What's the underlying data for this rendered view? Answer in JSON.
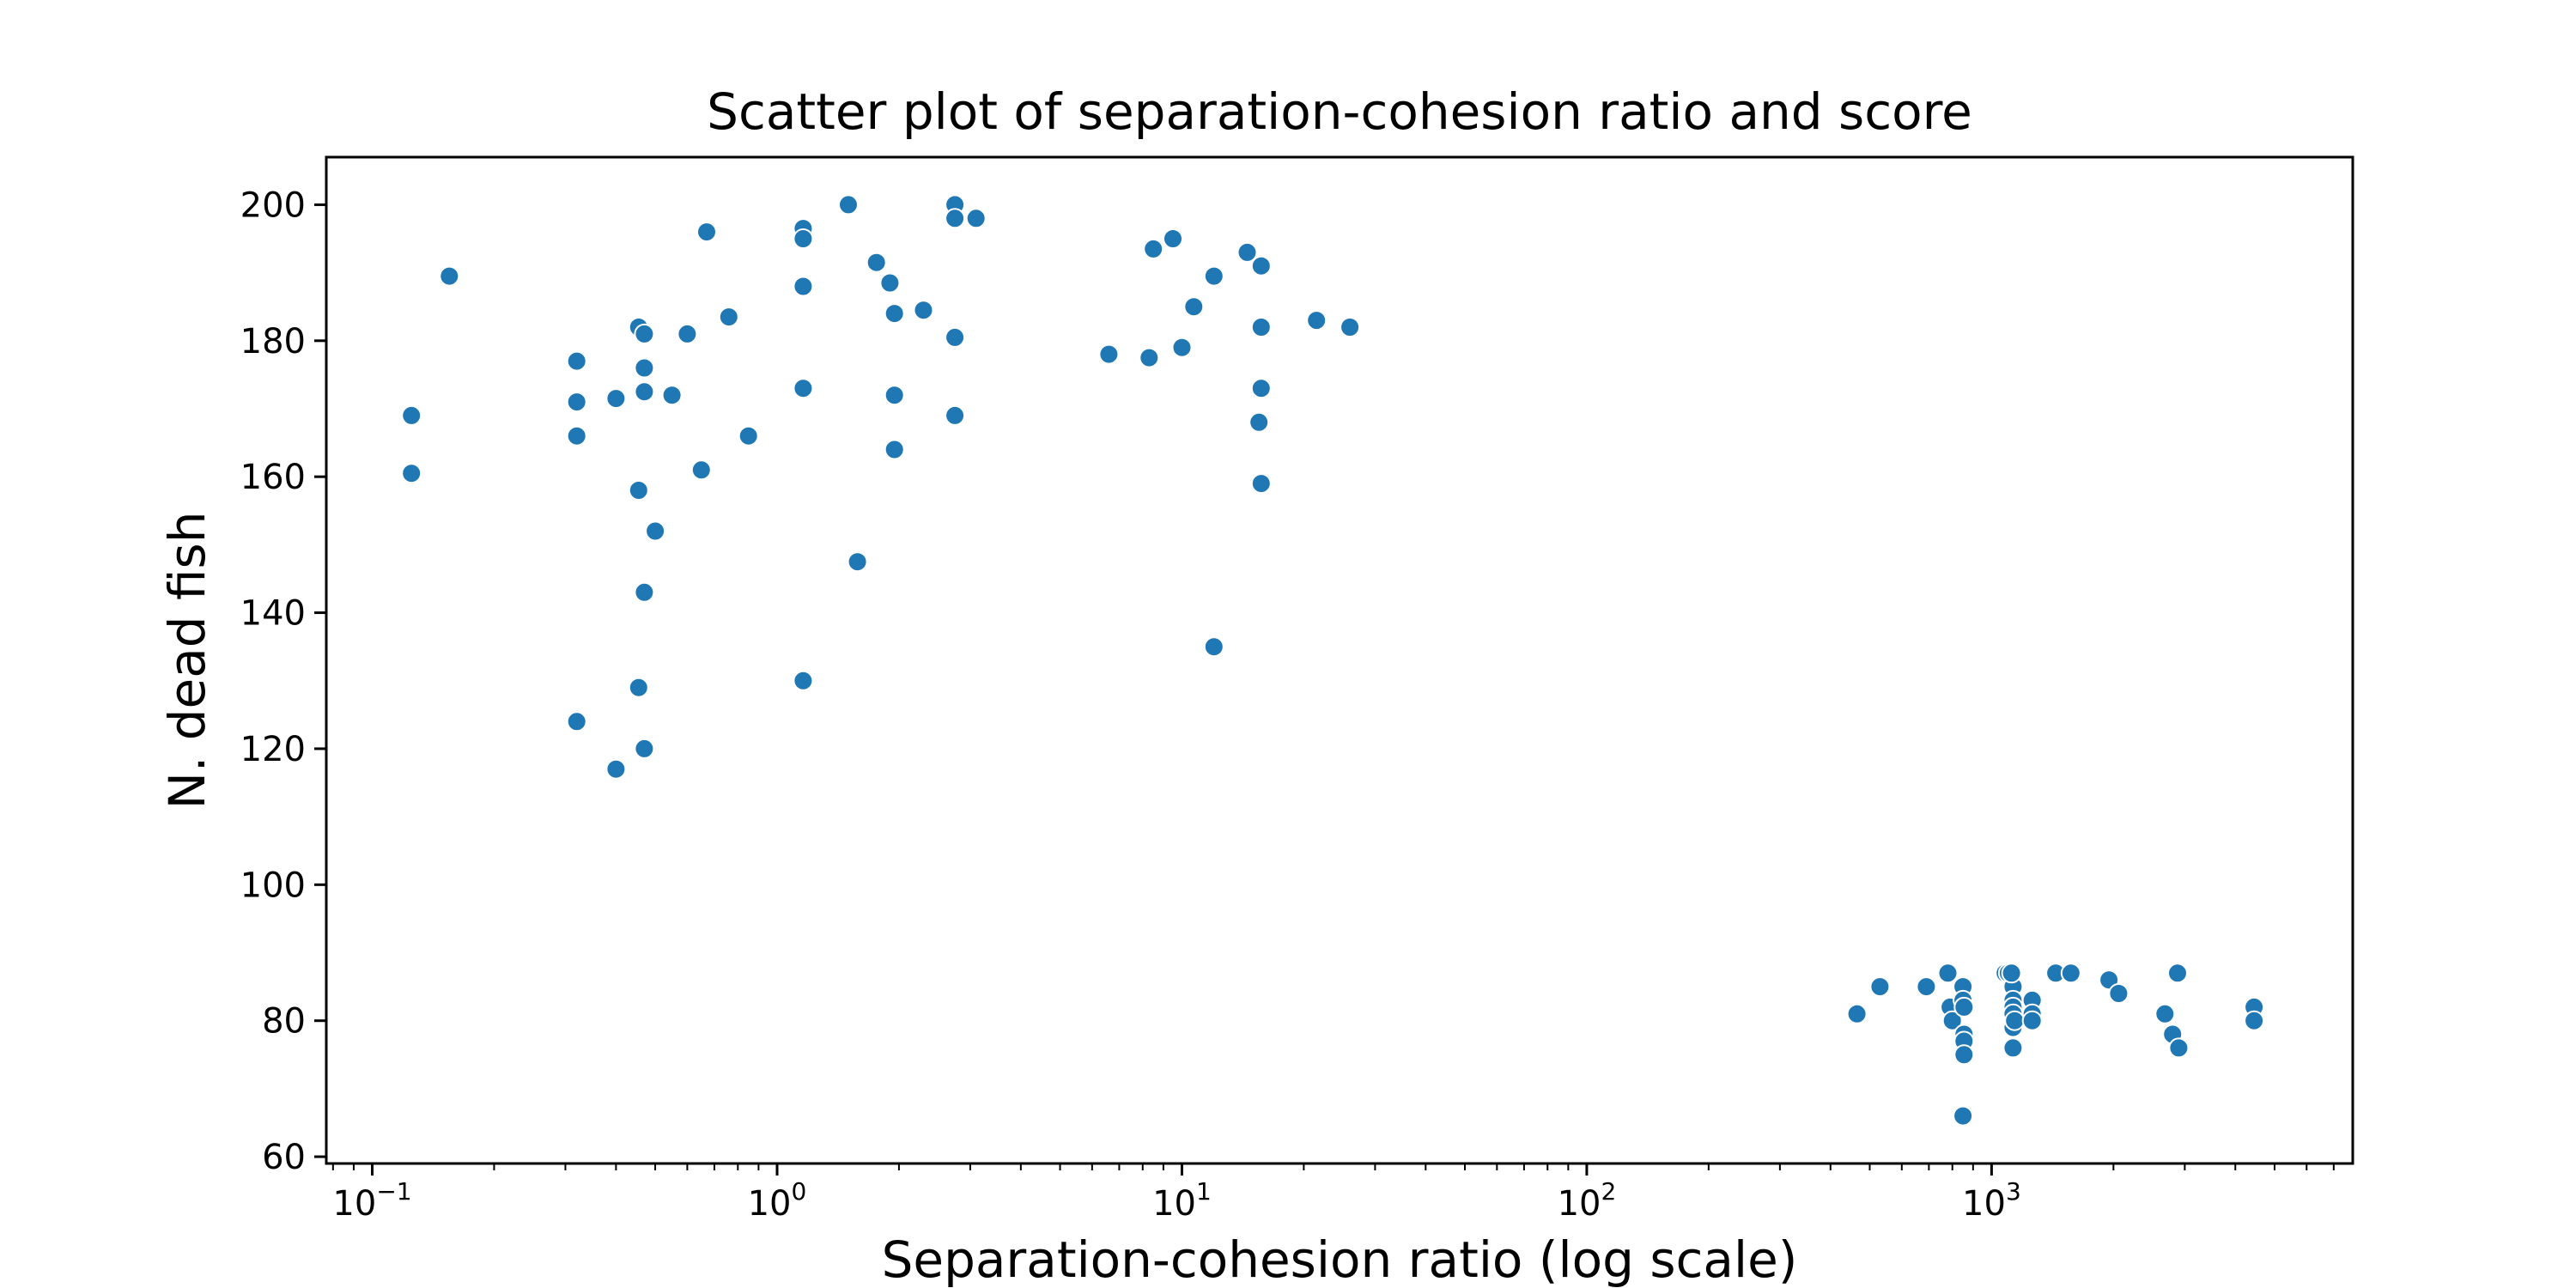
{
  "chart_data": {
    "type": "scatter",
    "title": "Scatter plot of separation-cohesion ratio and score",
    "xlabel": "Separation-cohesion ratio (log scale)",
    "ylabel": "N. dead fish",
    "xscale": "log",
    "xlim": [
      0.077,
      7800
    ],
    "ylim": [
      59,
      207
    ],
    "xticks": [
      {
        "value": 0.1,
        "base": "10",
        "exp": "−1"
      },
      {
        "value": 1,
        "base": "10",
        "exp": "0"
      },
      {
        "value": 10,
        "base": "10",
        "exp": "1"
      },
      {
        "value": 100,
        "base": "10",
        "exp": "2"
      },
      {
        "value": 1000,
        "base": "10",
        "exp": "3"
      }
    ],
    "yticks": [
      60,
      80,
      100,
      120,
      140,
      160,
      180,
      200
    ],
    "grid": false,
    "marker_color": "#1f77b4",
    "points": [
      [
        0.125,
        169
      ],
      [
        0.125,
        160.5
      ],
      [
        0.155,
        189.5
      ],
      [
        0.32,
        177
      ],
      [
        0.32,
        171
      ],
      [
        0.32,
        166
      ],
      [
        0.32,
        124
      ],
      [
        0.4,
        171.5
      ],
      [
        0.4,
        117
      ],
      [
        0.455,
        182
      ],
      [
        0.455,
        158
      ],
      [
        0.455,
        129
      ],
      [
        0.47,
        181
      ],
      [
        0.47,
        176
      ],
      [
        0.47,
        172.5
      ],
      [
        0.47,
        143
      ],
      [
        0.47,
        120
      ],
      [
        0.5,
        152
      ],
      [
        0.55,
        172
      ],
      [
        0.6,
        181
      ],
      [
        0.65,
        161
      ],
      [
        0.67,
        196
      ],
      [
        0.76,
        183.5
      ],
      [
        0.85,
        166
      ],
      [
        1.16,
        196.5
      ],
      [
        1.16,
        195
      ],
      [
        1.16,
        188
      ],
      [
        1.16,
        173
      ],
      [
        1.16,
        130
      ],
      [
        1.5,
        200
      ],
      [
        1.58,
        147.5
      ],
      [
        1.76,
        191.5
      ],
      [
        1.9,
        188.5
      ],
      [
        1.95,
        184
      ],
      [
        1.95,
        172
      ],
      [
        1.95,
        164
      ],
      [
        2.3,
        184.5
      ],
      [
        2.75,
        200
      ],
      [
        2.75,
        198
      ],
      [
        2.75,
        180.5
      ],
      [
        2.75,
        169
      ],
      [
        3.1,
        198
      ],
      [
        6.6,
        178
      ],
      [
        8.3,
        177.5
      ],
      [
        8.5,
        193.5
      ],
      [
        9.5,
        195
      ],
      [
        10.0,
        179
      ],
      [
        10.7,
        185
      ],
      [
        12.0,
        189.5
      ],
      [
        12.0,
        135
      ],
      [
        14.5,
        193
      ],
      [
        15.7,
        191
      ],
      [
        15.7,
        182
      ],
      [
        15.7,
        173
      ],
      [
        15.5,
        168
      ],
      [
        15.7,
        159
      ],
      [
        21.5,
        183
      ],
      [
        26.0,
        182
      ],
      [
        465,
        81
      ],
      [
        530,
        85
      ],
      [
        690,
        85
      ],
      [
        780,
        87
      ],
      [
        790,
        82
      ],
      [
        800,
        80
      ],
      [
        850,
        85
      ],
      [
        850,
        83
      ],
      [
        855,
        82
      ],
      [
        855,
        78
      ],
      [
        855,
        77
      ],
      [
        855,
        75
      ],
      [
        850,
        66
      ],
      [
        1080,
        87
      ],
      [
        1100,
        87
      ],
      [
        1130,
        85
      ],
      [
        1130,
        83
      ],
      [
        1130,
        82
      ],
      [
        1130,
        81
      ],
      [
        1130,
        79
      ],
      [
        1130,
        76
      ],
      [
        1140,
        80
      ],
      [
        1120,
        87
      ],
      [
        1260,
        83
      ],
      [
        1260,
        81
      ],
      [
        1260,
        80
      ],
      [
        1440,
        87
      ],
      [
        1570,
        87
      ],
      [
        1950,
        86
      ],
      [
        2060,
        84
      ],
      [
        2680,
        81
      ],
      [
        2800,
        78
      ],
      [
        2880,
        87
      ],
      [
        2900,
        76
      ],
      [
        4450,
        82
      ],
      [
        4450,
        80
      ]
    ]
  }
}
